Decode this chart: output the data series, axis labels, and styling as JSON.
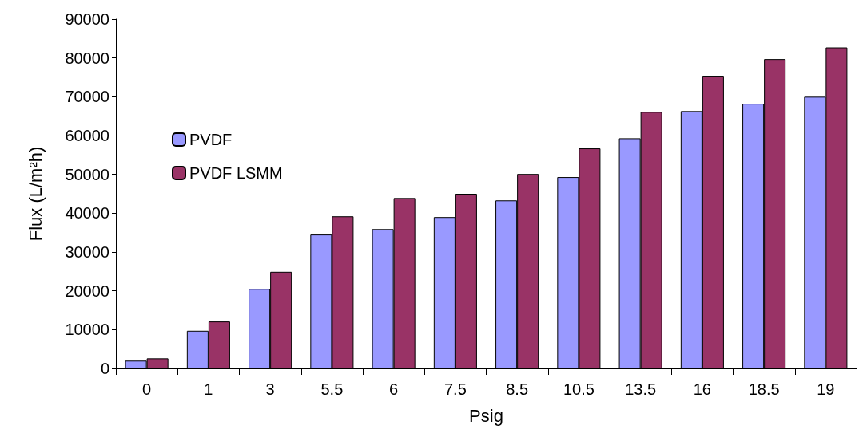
{
  "chart_data": {
    "type": "bar",
    "xlabel": "Psig",
    "ylabel": "Flux (L/m²h)",
    "categories": [
      "0",
      "1",
      "3",
      "5.5",
      "6",
      "7.5",
      "8.5",
      "10.5",
      "13.5",
      "16",
      "18.5",
      "19"
    ],
    "series": [
      {
        "name": "PVDF",
        "color": "#9999ff",
        "values": [
          2000,
          9700,
          20500,
          34500,
          35900,
          39000,
          43300,
          49300,
          59300,
          66300,
          68200,
          70000
        ]
      },
      {
        "name": "PVDF LSMM",
        "color": "#993366",
        "values": [
          2600,
          12100,
          24900,
          39200,
          43900,
          45000,
          50100,
          56700,
          66100,
          75400,
          79700,
          82700
        ]
      }
    ],
    "ylim": [
      0,
      90000
    ],
    "yticks": [
      0,
      10000,
      20000,
      30000,
      40000,
      50000,
      60000,
      70000,
      80000,
      90000
    ],
    "grid": false,
    "legend": "left"
  }
}
